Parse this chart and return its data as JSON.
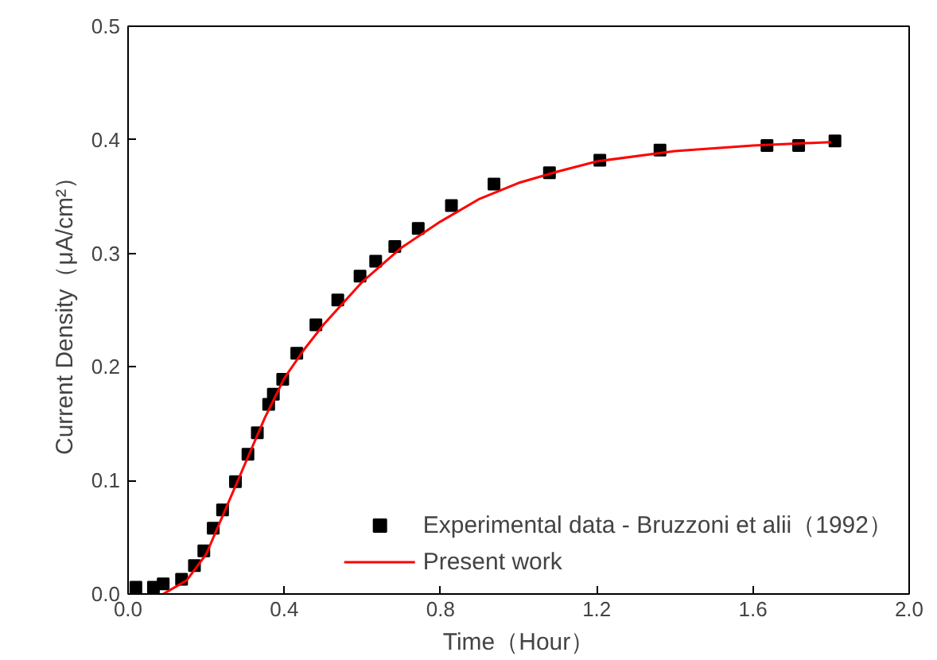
{
  "chart_data": {
    "type": "scatter",
    "xlabel": "Time（Hour）",
    "ylabel": "Current Density（μA/cm²）",
    "xlim": [
      0,
      2.0
    ],
    "ylim": [
      0,
      0.5
    ],
    "xticks": [
      {
        "value": 0,
        "label": "0.0"
      },
      0.4,
      0.8,
      1.2,
      1.6,
      {
        "value": 2.0,
        "label": "2.0"
      }
    ],
    "yticks": [
      {
        "value": 0,
        "label": "0.0"
      },
      0.1,
      0.2,
      0.3,
      0.4,
      0.5
    ],
    "grid": false,
    "legend": "bottom right",
    "series": [
      {
        "name": "Experimental data - Bruzzoni et alii（1992）",
        "marker": "square",
        "color": "#000000",
        "x": [
          0.02,
          0.065,
          0.09,
          0.137,
          0.17,
          0.194,
          0.218,
          0.242,
          0.275,
          0.307,
          0.331,
          0.36,
          0.372,
          0.396,
          0.432,
          0.481,
          0.537,
          0.594,
          0.634,
          0.683,
          0.743,
          0.828,
          0.937,
          1.079,
          1.208,
          1.362,
          1.636,
          1.717,
          1.81
        ],
        "values": [
          0.006,
          0.006,
          0.009,
          0.013,
          0.025,
          0.038,
          0.058,
          0.074,
          0.099,
          0.123,
          0.142,
          0.167,
          0.176,
          0.189,
          0.212,
          0.237,
          0.259,
          0.28,
          0.293,
          0.306,
          0.322,
          0.342,
          0.361,
          0.371,
          0.382,
          0.391,
          0.395,
          0.395,
          0.399
        ]
      },
      {
        "name": "Present work",
        "type": "line",
        "color": "#ff0000",
        "line_style": "solid",
        "x": [
          0.09,
          0.15,
          0.2,
          0.25,
          0.3,
          0.35,
          0.4,
          0.45,
          0.5,
          0.6,
          0.7,
          0.8,
          0.9,
          1.0,
          1.1,
          1.2,
          1.4,
          1.6,
          1.8
        ],
        "values": [
          0,
          0.012,
          0.035,
          0.075,
          0.115,
          0.155,
          0.19,
          0.215,
          0.237,
          0.275,
          0.305,
          0.328,
          0.348,
          0.362,
          0.372,
          0.381,
          0.39,
          0.395,
          0.398
        ]
      }
    ]
  }
}
